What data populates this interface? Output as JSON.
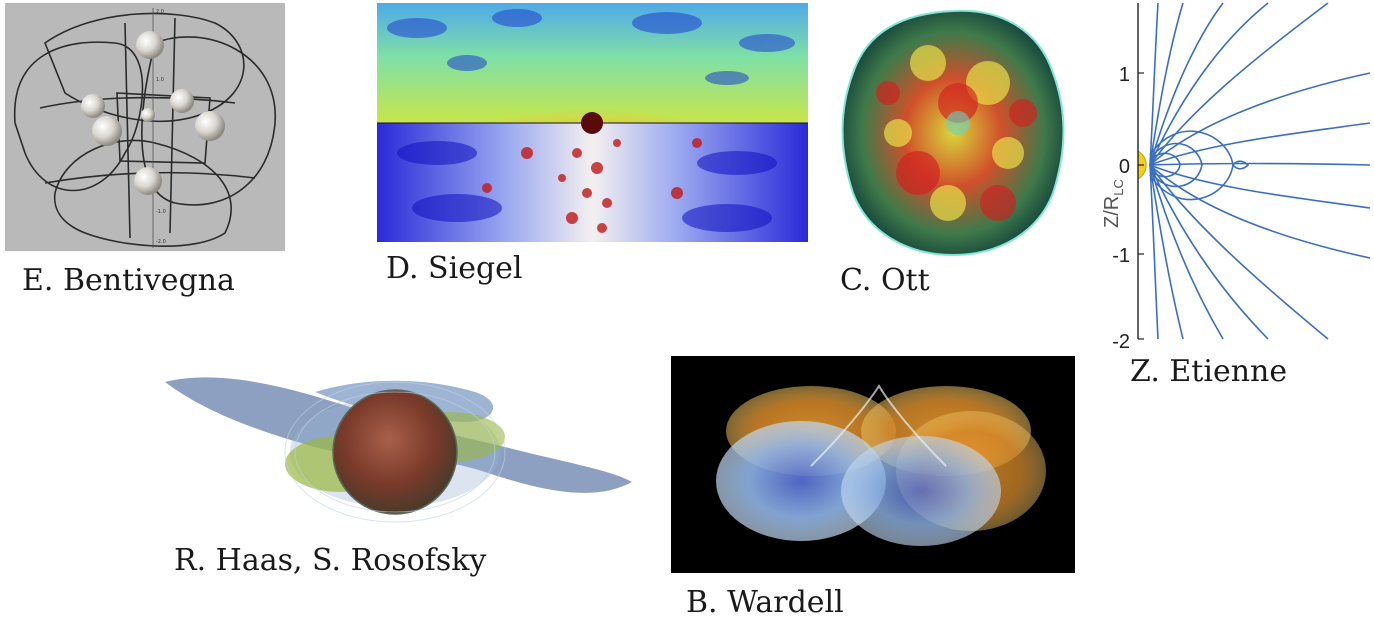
{
  "captions": {
    "bentivegna": "E. Bentivegna",
    "siegel": "D. Siegel",
    "ott": "C. Ott",
    "etienne": "Z. Etienne",
    "haas": "R. Haas, S. Rosofsky",
    "wardell": "B. Wardell"
  },
  "etienne_axis": {
    "ylabel": "Z/R",
    "ylabel_sub": "LC",
    "ticks": [
      "1",
      "0",
      "-1",
      "-2"
    ]
  }
}
